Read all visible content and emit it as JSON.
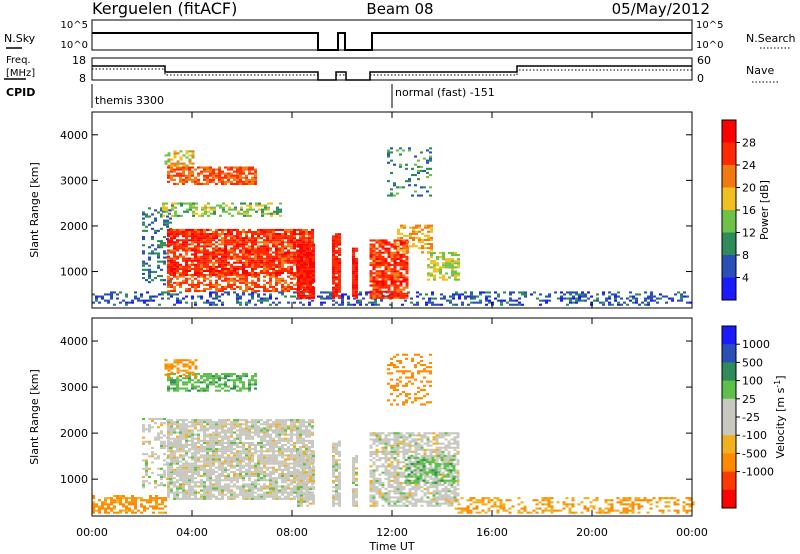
{
  "header": {
    "station": "Kerguelen (fitACF)",
    "beam": "Beam 08",
    "date": "05/May/2012"
  },
  "strip": {
    "nsky_label": "N.Sky",
    "nsky_ticks": [
      "10^5",
      "10^0"
    ],
    "nsearch_label": "N.Search",
    "freq_label_line1": "Freq.",
    "freq_label_line2": "[MHz]",
    "freq_ticks": [
      "18",
      "8"
    ],
    "nave_label": "Nave",
    "nave_ticks": [
      "60",
      "0"
    ],
    "cpid_label": "CPID",
    "cpid_segments": [
      {
        "start_hr": 0,
        "label": "themis 3300"
      },
      {
        "start_hr": 12,
        "label": "normal (fast) -151"
      }
    ]
  },
  "colors": {
    "power": [
      "#1a1aff",
      "#2a50b8",
      "#2e8c5a",
      "#6ec24a",
      "#f0c020",
      "#f07a10",
      "#ff2a00",
      "#ff0000"
    ],
    "velocity": [
      "#ff0000",
      "#ff3a00",
      "#ff8a00",
      "#f0b020",
      "#c8c8c0",
      "#c8c8c0",
      "#5cc04a",
      "#2e8c5a",
      "#2a50b8",
      "#1a1aff"
    ]
  },
  "chart_data": [
    {
      "type": "heatmap",
      "title": "",
      "xlabel": "Time UT",
      "ylabel": "Slant Range [km]",
      "xlim": [
        0,
        24
      ],
      "ylim": [
        200,
        4500
      ],
      "x_ticks": [
        "00:00",
        "04:00",
        "08:00",
        "12:00",
        "16:00",
        "20:00",
        "00:00"
      ],
      "y_ticks": [
        "1000",
        "2000",
        "3000",
        "4000"
      ],
      "colorbar_label": "Power [dB]",
      "colorbar_ticks": [
        "4",
        "8",
        "12",
        "16",
        "20",
        "24",
        "28"
      ],
      "colorbar_range": [
        0,
        32
      ],
      "regions": [
        {
          "t": [
            0.0,
            24.0
          ],
          "r": [
            250,
            550
          ],
          "value": 6,
          "density": 0.35
        },
        {
          "t": [
            2.0,
            3.2
          ],
          "r": [
            700,
            2400
          ],
          "value": 8,
          "density": 0.3
        },
        {
          "t": [
            3.0,
            8.8
          ],
          "r": [
            900,
            1900
          ],
          "value": 26,
          "density": 0.85
        },
        {
          "t": [
            3.0,
            8.8
          ],
          "r": [
            550,
            900
          ],
          "value": 24,
          "density": 0.6
        },
        {
          "t": [
            3.0,
            6.5
          ],
          "r": [
            2900,
            3300
          ],
          "value": 24,
          "density": 0.7
        },
        {
          "t": [
            2.8,
            7.5
          ],
          "r": [
            2200,
            2500
          ],
          "value": 14,
          "density": 0.5
        },
        {
          "t": [
            2.9,
            4.0
          ],
          "r": [
            3300,
            3650
          ],
          "value": 18,
          "density": 0.4
        },
        {
          "t": [
            8.2,
            8.9
          ],
          "r": [
            400,
            1600
          ],
          "value": 28,
          "density": 0.9
        },
        {
          "t": [
            9.6,
            9.9
          ],
          "r": [
            400,
            1800
          ],
          "value": 28,
          "density": 0.9
        },
        {
          "t": [
            10.4,
            10.6
          ],
          "r": [
            400,
            1500
          ],
          "value": 28,
          "density": 0.9
        },
        {
          "t": [
            11.1,
            12.6
          ],
          "r": [
            400,
            1700
          ],
          "value": 26,
          "density": 0.8
        },
        {
          "t": [
            12.2,
            13.6
          ],
          "r": [
            1400,
            2000
          ],
          "value": 20,
          "density": 0.55
        },
        {
          "t": [
            13.4,
            14.6
          ],
          "r": [
            800,
            1400
          ],
          "value": 16,
          "density": 0.6
        },
        {
          "t": [
            11.8,
            13.5
          ],
          "r": [
            2600,
            3700
          ],
          "value": 10,
          "density": 0.2
        }
      ]
    },
    {
      "type": "heatmap",
      "title": "",
      "xlabel": "Time UT",
      "ylabel": "Slant Range [km]",
      "xlim": [
        0,
        24
      ],
      "ylim": [
        200,
        4500
      ],
      "x_ticks": [
        "00:00",
        "04:00",
        "08:00",
        "12:00",
        "16:00",
        "20:00",
        "00:00"
      ],
      "y_ticks": [
        "1000",
        "2000",
        "3000",
        "4000"
      ],
      "colorbar_label": "Velocity [m s^-1]",
      "colorbar_ticks": [
        "1000",
        "500",
        "100",
        "25",
        "-25",
        "-100",
        "-500",
        "-1000"
      ],
      "regions": [
        {
          "t": [
            0.0,
            3.0
          ],
          "r": [
            250,
            650
          ],
          "value": -120,
          "density": 0.55
        },
        {
          "t": [
            3.0,
            8.8
          ],
          "r": [
            550,
            2300
          ],
          "value": 0,
          "density": 0.8
        },
        {
          "t": [
            2.0,
            3.2
          ],
          "r": [
            800,
            2300
          ],
          "value": 0,
          "density": 0.35
        },
        {
          "t": [
            3.0,
            6.5
          ],
          "r": [
            2900,
            3300
          ],
          "value": 80,
          "density": 0.6
        },
        {
          "t": [
            2.9,
            4.2
          ],
          "r": [
            3200,
            3600
          ],
          "value": -120,
          "density": 0.5
        },
        {
          "t": [
            8.2,
            8.9
          ],
          "r": [
            400,
            1600
          ],
          "value": 0,
          "density": 0.8
        },
        {
          "t": [
            9.6,
            9.9
          ],
          "r": [
            400,
            1800
          ],
          "value": 0,
          "density": 0.8
        },
        {
          "t": [
            10.4,
            10.6
          ],
          "r": [
            400,
            1500
          ],
          "value": 0,
          "density": 0.8
        },
        {
          "t": [
            11.1,
            14.6
          ],
          "r": [
            400,
            2000
          ],
          "value": 0,
          "density": 0.7
        },
        {
          "t": [
            12.5,
            14.5
          ],
          "r": [
            900,
            1500
          ],
          "value": 80,
          "density": 0.35
        },
        {
          "t": [
            11.8,
            13.5
          ],
          "r": [
            2600,
            3700
          ],
          "value": -150,
          "density": 0.25
        },
        {
          "t": [
            14.5,
            24.0
          ],
          "r": [
            250,
            600
          ],
          "value": -100,
          "density": 0.35
        }
      ]
    }
  ]
}
